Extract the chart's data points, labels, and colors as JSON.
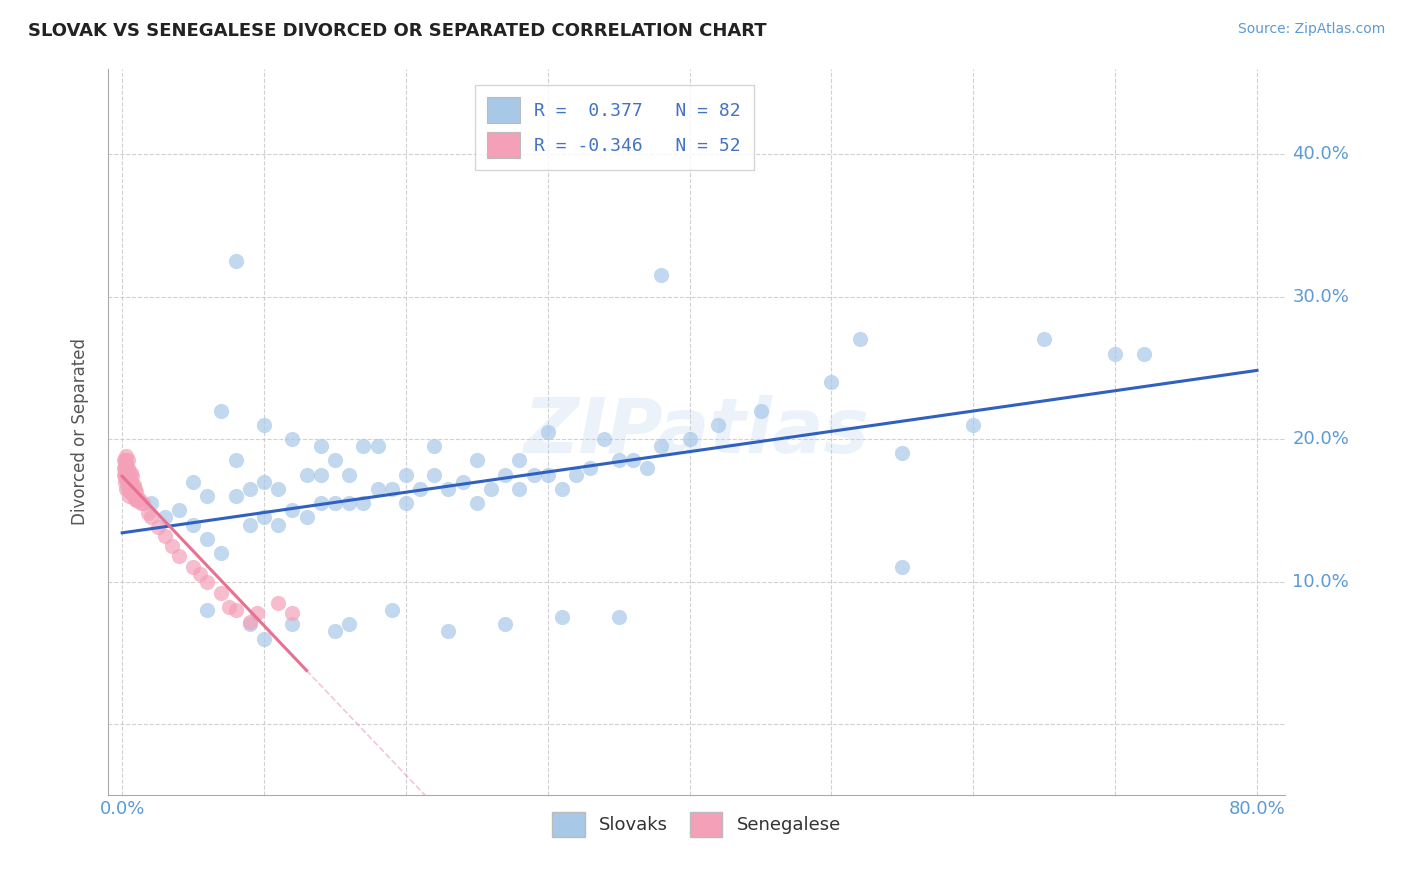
{
  "title": "SLOVAK VS SENEGALESE DIVORCED OR SEPARATED CORRELATION CHART",
  "source": "Source: ZipAtlas.com",
  "ylabel_text": "Divorced or Separated",
  "xlim": [
    -0.01,
    0.82
  ],
  "ylim": [
    -0.05,
    0.46
  ],
  "xticks": [
    0.0,
    0.1,
    0.2,
    0.3,
    0.4,
    0.5,
    0.6,
    0.7,
    0.8
  ],
  "yticks": [
    0.0,
    0.1,
    0.2,
    0.3,
    0.4
  ],
  "watermark": "ZIPatlas",
  "blue_scatter_color": "#a8c8e8",
  "pink_scatter_color": "#f4a0b8",
  "blue_line_color": "#3060c0",
  "pink_line_color": "#e87090",
  "legend_label_blue": "R =  0.377   N = 82",
  "legend_label_pink": "R = -0.346   N = 52",
  "legend_patch_blue": "#a8c8e8",
  "legend_patch_pink": "#f4a0b8",
  "tick_color": "#5b9bd5",
  "blue_points_x": [
    0.02,
    0.03,
    0.04,
    0.05,
    0.05,
    0.06,
    0.06,
    0.07,
    0.07,
    0.08,
    0.08,
    0.09,
    0.09,
    0.1,
    0.1,
    0.1,
    0.11,
    0.11,
    0.12,
    0.12,
    0.13,
    0.13,
    0.14,
    0.14,
    0.14,
    0.15,
    0.15,
    0.16,
    0.16,
    0.17,
    0.17,
    0.18,
    0.18,
    0.19,
    0.2,
    0.2,
    0.21,
    0.22,
    0.22,
    0.23,
    0.24,
    0.25,
    0.25,
    0.26,
    0.27,
    0.28,
    0.28,
    0.29,
    0.3,
    0.3,
    0.31,
    0.32,
    0.33,
    0.34,
    0.35,
    0.36,
    0.37,
    0.38,
    0.4,
    0.42,
    0.45,
    0.5,
    0.52,
    0.55,
    0.6,
    0.65,
    0.7,
    0.72,
    0.08,
    0.38,
    0.06,
    0.09,
    0.1,
    0.12,
    0.15,
    0.16,
    0.19,
    0.23,
    0.27,
    0.31,
    0.35,
    0.55
  ],
  "blue_points_y": [
    0.155,
    0.145,
    0.15,
    0.14,
    0.17,
    0.13,
    0.16,
    0.12,
    0.22,
    0.16,
    0.185,
    0.14,
    0.165,
    0.145,
    0.17,
    0.21,
    0.14,
    0.165,
    0.15,
    0.2,
    0.145,
    0.175,
    0.155,
    0.175,
    0.195,
    0.155,
    0.185,
    0.155,
    0.175,
    0.155,
    0.195,
    0.165,
    0.195,
    0.165,
    0.155,
    0.175,
    0.165,
    0.175,
    0.195,
    0.165,
    0.17,
    0.185,
    0.155,
    0.165,
    0.175,
    0.165,
    0.185,
    0.175,
    0.175,
    0.205,
    0.165,
    0.175,
    0.18,
    0.2,
    0.185,
    0.185,
    0.18,
    0.195,
    0.2,
    0.21,
    0.22,
    0.24,
    0.27,
    0.19,
    0.21,
    0.27,
    0.26,
    0.26,
    0.325,
    0.315,
    0.08,
    0.07,
    0.06,
    0.07,
    0.065,
    0.07,
    0.08,
    0.065,
    0.07,
    0.075,
    0.075,
    0.11
  ],
  "pink_points_x": [
    0.001,
    0.001,
    0.001,
    0.002,
    0.002,
    0.002,
    0.002,
    0.003,
    0.003,
    0.003,
    0.003,
    0.003,
    0.004,
    0.004,
    0.004,
    0.004,
    0.004,
    0.005,
    0.005,
    0.005,
    0.006,
    0.006,
    0.006,
    0.007,
    0.007,
    0.007,
    0.008,
    0.008,
    0.009,
    0.009,
    0.01,
    0.01,
    0.011,
    0.012,
    0.013,
    0.015,
    0.018,
    0.02,
    0.025,
    0.03,
    0.035,
    0.04,
    0.05,
    0.055,
    0.06,
    0.07,
    0.075,
    0.08,
    0.09,
    0.095,
    0.11,
    0.12
  ],
  "pink_points_y": [
    0.175,
    0.18,
    0.185,
    0.17,
    0.175,
    0.18,
    0.185,
    0.165,
    0.172,
    0.178,
    0.183,
    0.188,
    0.165,
    0.17,
    0.175,
    0.18,
    0.185,
    0.16,
    0.168,
    0.175,
    0.162,
    0.17,
    0.176,
    0.162,
    0.168,
    0.174,
    0.16,
    0.168,
    0.158,
    0.165,
    0.157,
    0.163,
    0.157,
    0.158,
    0.155,
    0.155,
    0.148,
    0.145,
    0.138,
    0.132,
    0.125,
    0.118,
    0.11,
    0.105,
    0.1,
    0.092,
    0.082,
    0.08,
    0.072,
    0.078,
    0.085,
    0.078
  ]
}
